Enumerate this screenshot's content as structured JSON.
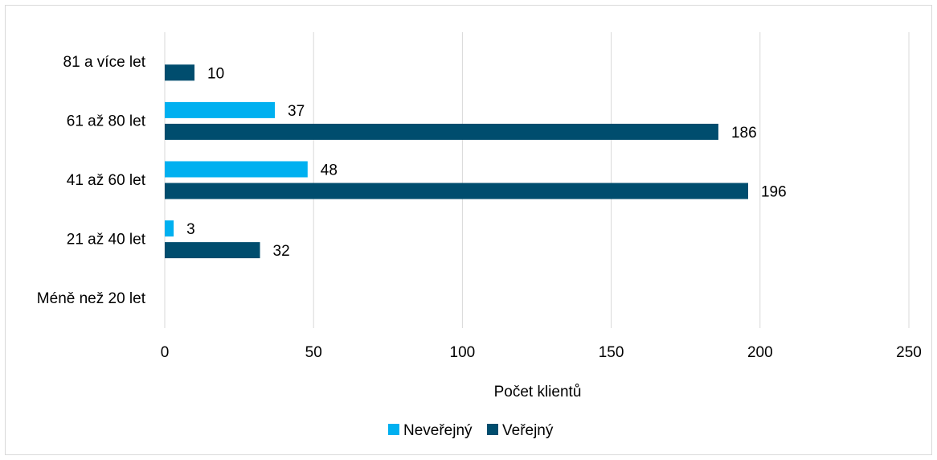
{
  "chart_data": {
    "type": "bar",
    "orientation": "horizontal",
    "categories": [
      "81 a více let",
      "61 až 80 let",
      "41 až 60 let",
      "21 až 40 let",
      "Méně než 20 let"
    ],
    "series": [
      {
        "name": "Neveřejný",
        "color": "#00b0f0",
        "values": [
          null,
          37,
          48,
          3,
          null
        ]
      },
      {
        "name": "Veřejný",
        "color": "#004d6e",
        "values": [
          10,
          186,
          196,
          32,
          null
        ]
      }
    ],
    "xlabel": "Počet klientů",
    "ylabel": "",
    "xlim": [
      0,
      250
    ],
    "xticks": [
      "0",
      "50",
      "100",
      "150",
      "200",
      "250"
    ],
    "grid": "vertical",
    "legend_position": "bottom",
    "data_labels": true
  }
}
